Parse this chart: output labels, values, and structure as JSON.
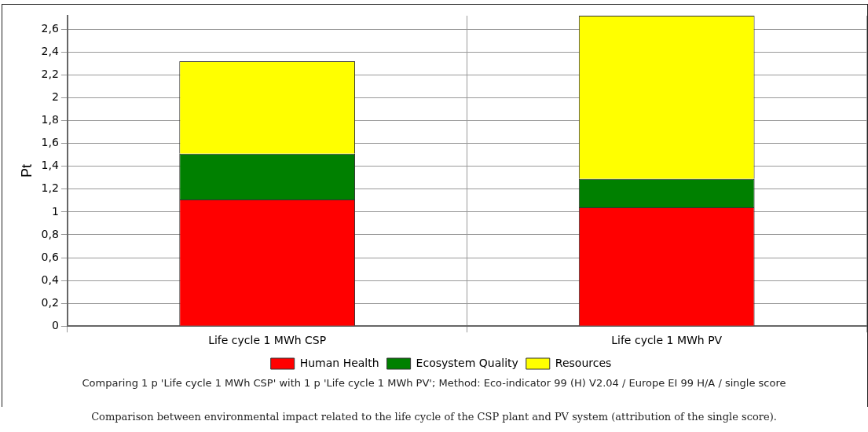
{
  "chart_data": {
    "type": "bar",
    "stacked": true,
    "ylabel": "Pt",
    "categories": [
      "Life cycle 1 MWh CSP",
      "Life cycle 1 MWh PV"
    ],
    "series": [
      {
        "name": "Human Health",
        "color": "#ff0000",
        "values": [
          1.11,
          1.04
        ]
      },
      {
        "name": "Ecosystem Quality",
        "color": "#008000",
        "values": [
          0.4,
          0.25
        ]
      },
      {
        "name": "Resources",
        "color": "#ffff00",
        "values": [
          0.81,
          1.43
        ]
      }
    ],
    "ylim": [
      0,
      2.72
    ],
    "yticks": [
      0,
      {
        "value": 0.2,
        "label": "0,2"
      },
      {
        "value": 0.4,
        "label": "0,4"
      },
      {
        "value": 0.6,
        "label": "0,6"
      },
      {
        "value": 0.8,
        "label": "0,8"
      },
      1,
      {
        "value": 1.2,
        "label": "1,2"
      },
      {
        "value": 1.4,
        "label": "1,4"
      },
      {
        "value": 1.6,
        "label": "1,6"
      },
      {
        "value": 1.8,
        "label": "1,8"
      },
      2,
      {
        "value": 2.2,
        "label": "2,2"
      },
      {
        "value": 2.4,
        "label": "2,4"
      },
      {
        "value": 2.6,
        "label": "2,6"
      }
    ],
    "grid": true,
    "legend": "bottom",
    "annotations": [
      "Comparing 1 p 'Life cycle 1 MWh CSP' with 1 p 'Life cycle 1 MWh PV';  Method: Eco-indicator 99 (H) V2.04 /  Europe EI 99 H/A / single score",
      "Comparison between environmental impact related to the life cycle of the CSP plant and PV system (attribution of the single score)."
    ]
  }
}
